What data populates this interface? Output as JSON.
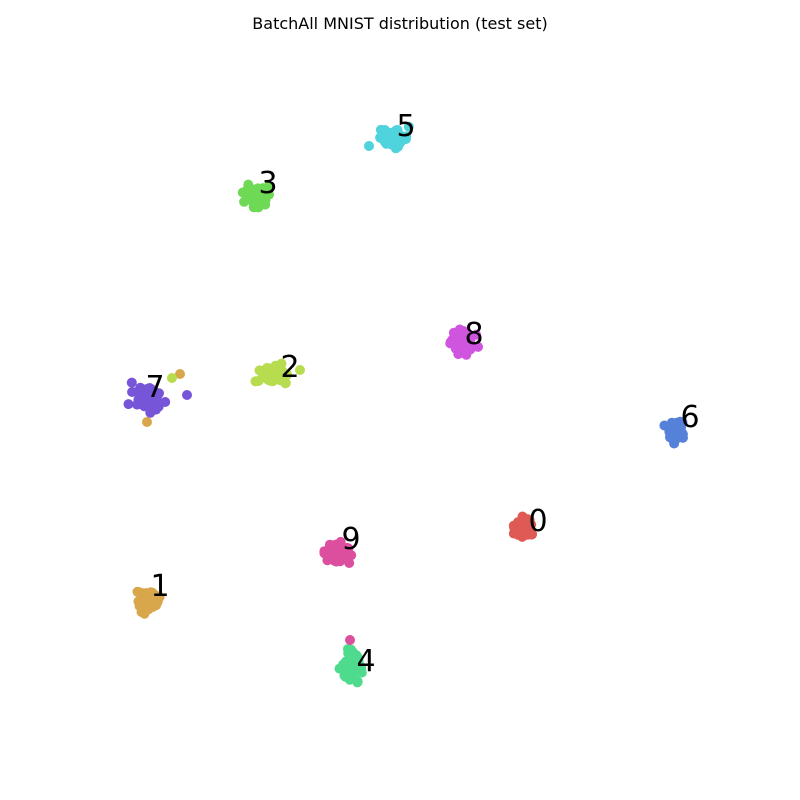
{
  "chart_data": {
    "type": "scatter",
    "title": "BatchAll MNIST distribution (test set)",
    "axes_visible": false,
    "grid": false,
    "legend": "none",
    "xlim": [
      0,
      800
    ],
    "ylim": [
      800,
      0
    ],
    "series": [
      {
        "label": "0",
        "color": "#e05a55",
        "center": [
          524,
          528
        ],
        "spread": [
          9,
          8
        ],
        "label_at": [
          538,
          520
        ]
      },
      {
        "label": "1",
        "color": "#d9a74b",
        "center": [
          148,
          600
        ],
        "spread": [
          10,
          10
        ],
        "label_at": [
          160,
          585
        ]
      },
      {
        "label": "2",
        "color": "#b8dc4f",
        "center": [
          275,
          375
        ],
        "spread": [
          13,
          10
        ],
        "label_at": [
          290,
          366
        ]
      },
      {
        "label": "3",
        "color": "#6ed954",
        "center": [
          254,
          196
        ],
        "spread": [
          10,
          9
        ],
        "label_at": [
          268,
          182
        ]
      },
      {
        "label": "4",
        "color": "#4fdb8e",
        "center": [
          353,
          667
        ],
        "spread": [
          9,
          12
        ],
        "label_at": [
          366,
          660
        ]
      },
      {
        "label": "5",
        "color": "#4fd3dc",
        "center": [
          394,
          138
        ],
        "spread": [
          12,
          8
        ],
        "label_at": [
          406,
          125
        ]
      },
      {
        "label": "6",
        "color": "#5581d9",
        "center": [
          676,
          430
        ],
        "spread": [
          8,
          9
        ],
        "label_at": [
          690,
          416
        ]
      },
      {
        "label": "7",
        "color": "#7755d8",
        "center": [
          148,
          398
        ],
        "spread": [
          13,
          11
        ],
        "label_at": [
          155,
          386
        ]
      },
      {
        "label": "8",
        "color": "#cf55df",
        "center": [
          463,
          343
        ],
        "spread": [
          10,
          9
        ],
        "label_at": [
          474,
          333
        ]
      },
      {
        "label": "9",
        "color": "#dc4f9e",
        "center": [
          337,
          553
        ],
        "spread": [
          11,
          9
        ],
        "label_at": [
          351,
          538
        ]
      }
    ],
    "outliers": [
      {
        "label": "4",
        "color": "#dc4f9e",
        "at": [
          350,
          640
        ]
      },
      {
        "label": "7",
        "color": "#d9a74b",
        "at": [
          180,
          374
        ]
      },
      {
        "label": "7",
        "color": "#b8dc4f",
        "at": [
          172,
          378
        ]
      },
      {
        "label": "7",
        "color": "#d9a74b",
        "at": [
          147,
          422
        ]
      },
      {
        "label": "7",
        "color": "#7755d8",
        "at": [
          187,
          395
        ]
      },
      {
        "label": "5",
        "color": "#4fd3dc",
        "at": [
          369,
          146
        ]
      },
      {
        "label": "2",
        "color": "#b8dc4f",
        "at": [
          300,
          370
        ]
      }
    ]
  }
}
